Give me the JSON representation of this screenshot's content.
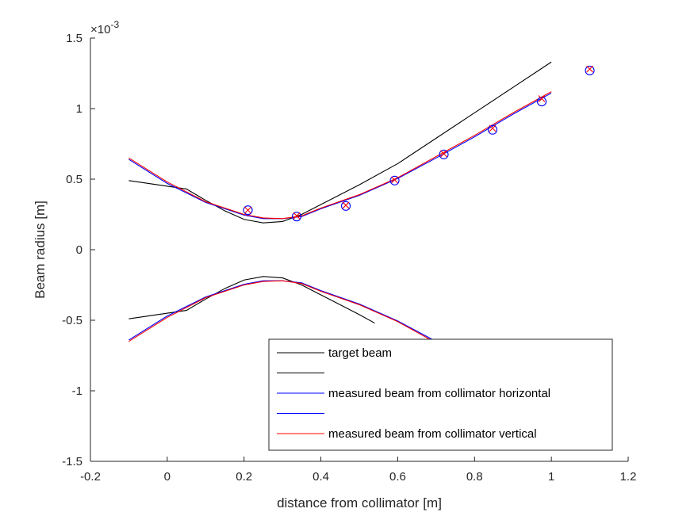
{
  "chart_data": {
    "type": "line",
    "title": "",
    "xlabel": "distance from collimator [m]",
    "ylabel": "Beam radius [m]",
    "y_exponent_label": "×10",
    "y_exponent_power": "-3",
    "xlim": [
      -0.2,
      1.2
    ],
    "ylim": [
      -0.0015,
      0.0015
    ],
    "x_ticks": [
      -0.2,
      0,
      0.2,
      0.4,
      0.6,
      0.8,
      1,
      1.2
    ],
    "x_tick_labels": [
      "-0.2",
      "0",
      "0.2",
      "0.4",
      "0.6",
      "0.8",
      "1",
      "1.2"
    ],
    "y_ticks": [
      -0.0015,
      -0.001,
      -0.0005,
      0,
      0.0005,
      0.001,
      0.0015
    ],
    "y_tick_labels": [
      "-1.5",
      "-1",
      "-0.5",
      "0",
      "0.5",
      "1",
      "1.5"
    ],
    "grid": false,
    "legend_position": "bottom-right",
    "legend": [
      {
        "label": "target beam",
        "color": "#000000"
      },
      {
        "label": "",
        "color": "#000000"
      },
      {
        "label": "measured beam from collimator horizontal",
        "color": "#0000ff"
      },
      {
        "label": "",
        "color": "#0000ff"
      },
      {
        "label": "measured beam from collimator vertical",
        "color": "#ff0000"
      }
    ],
    "series": [
      {
        "color": "#000000",
        "style": "line",
        "x": [
          -0.1,
          0.05,
          0.1,
          0.15,
          0.2,
          0.25,
          0.3,
          0.35,
          0.4,
          0.5,
          0.6,
          0.7,
          0.8,
          0.9,
          1.0
        ],
        "y": [
          0.00049,
          0.00043,
          0.00035,
          0.000275,
          0.000215,
          0.00019,
          0.0002,
          0.00025,
          0.00032,
          0.00046,
          0.00061,
          0.00079,
          0.00097,
          0.00115,
          0.00133
        ]
      },
      {
        "color": "#000000",
        "style": "line",
        "x": [
          -0.1,
          0.05,
          0.1,
          0.15,
          0.2,
          0.25,
          0.3,
          0.35,
          0.4,
          0.5,
          0.54
        ],
        "y": [
          -0.00049,
          -0.00043,
          -0.00035,
          -0.000275,
          -0.000215,
          -0.00019,
          -0.0002,
          -0.00025,
          -0.00032,
          -0.00046,
          -0.00052
        ]
      },
      {
        "color": "#0000ff",
        "style": "line",
        "x": [
          -0.1,
          0.0,
          0.1,
          0.2,
          0.25,
          0.3,
          0.35,
          0.4,
          0.5,
          0.6,
          0.7,
          0.8,
          0.9,
          1.0
        ],
        "y": [
          0.00064,
          0.00047,
          0.000335,
          0.000245,
          0.00022,
          0.00022,
          0.000235,
          0.00029,
          0.000385,
          0.000505,
          0.00065,
          0.0008,
          0.00096,
          0.00111
        ]
      },
      {
        "color": "#0000ff",
        "style": "line",
        "x": [
          -0.1,
          0.0,
          0.1,
          0.2,
          0.25,
          0.3,
          0.35,
          0.4,
          0.5,
          0.6,
          0.7,
          0.71
        ],
        "y": [
          -0.00064,
          -0.00047,
          -0.000335,
          -0.000245,
          -0.00022,
          -0.00022,
          -0.000235,
          -0.00029,
          -0.000385,
          -0.000505,
          -0.00065,
          -0.00066
        ]
      },
      {
        "color": "#ff0000",
        "style": "line",
        "x": [
          -0.1,
          0.0,
          0.1,
          0.2,
          0.25,
          0.3,
          0.35,
          0.4,
          0.5,
          0.6,
          0.7,
          0.8,
          0.9,
          1.0
        ],
        "y": [
          0.00065,
          0.00048,
          0.00034,
          0.00025,
          0.000225,
          0.00022,
          0.00024,
          0.000295,
          0.00039,
          0.00051,
          0.00066,
          0.00081,
          0.00097,
          0.00112
        ]
      },
      {
        "color": "#ff0000",
        "style": "line",
        "x": [
          -0.1,
          0.0,
          0.1,
          0.2,
          0.25,
          0.3,
          0.35,
          0.4,
          0.5,
          0.6,
          0.7,
          0.705
        ],
        "y": [
          -0.00065,
          -0.00048,
          -0.00034,
          -0.00025,
          -0.000225,
          -0.00022,
          -0.00024,
          -0.000295,
          -0.00039,
          -0.00051,
          -0.00066,
          -0.000665
        ]
      },
      {
        "color": "#0000ff",
        "style": "marker-circle",
        "x": [
          0.21,
          0.337,
          0.465,
          0.592,
          0.72,
          0.847,
          0.975,
          1.1
        ],
        "y": [
          0.00028,
          0.000235,
          0.00031,
          0.00049,
          0.000675,
          0.00085,
          0.00105,
          0.00127
        ]
      },
      {
        "color": "#ff0000",
        "style": "marker-x",
        "x": [
          0.21,
          0.337,
          0.465,
          0.592,
          0.72,
          0.847,
          0.975,
          1.1
        ],
        "y": [
          0.00028,
          0.00024,
          0.000315,
          0.000495,
          0.00068,
          0.00086,
          0.00107,
          0.00128
        ]
      }
    ]
  }
}
